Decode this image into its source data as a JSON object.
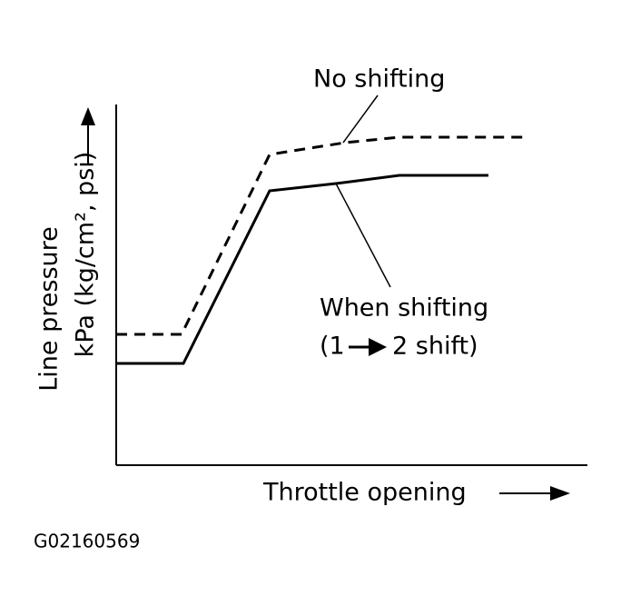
{
  "labels": {
    "no_shifting": "No shifting",
    "when_shifting": "When shifting",
    "shift_from": "(1",
    "shift_to": "2 shift)"
  },
  "axes": {
    "y_label": [
      "Line pressure",
      "kPa (kg/cm², psi)"
    ],
    "x_label": "Throttle opening"
  },
  "figure_code": "G02160569"
}
